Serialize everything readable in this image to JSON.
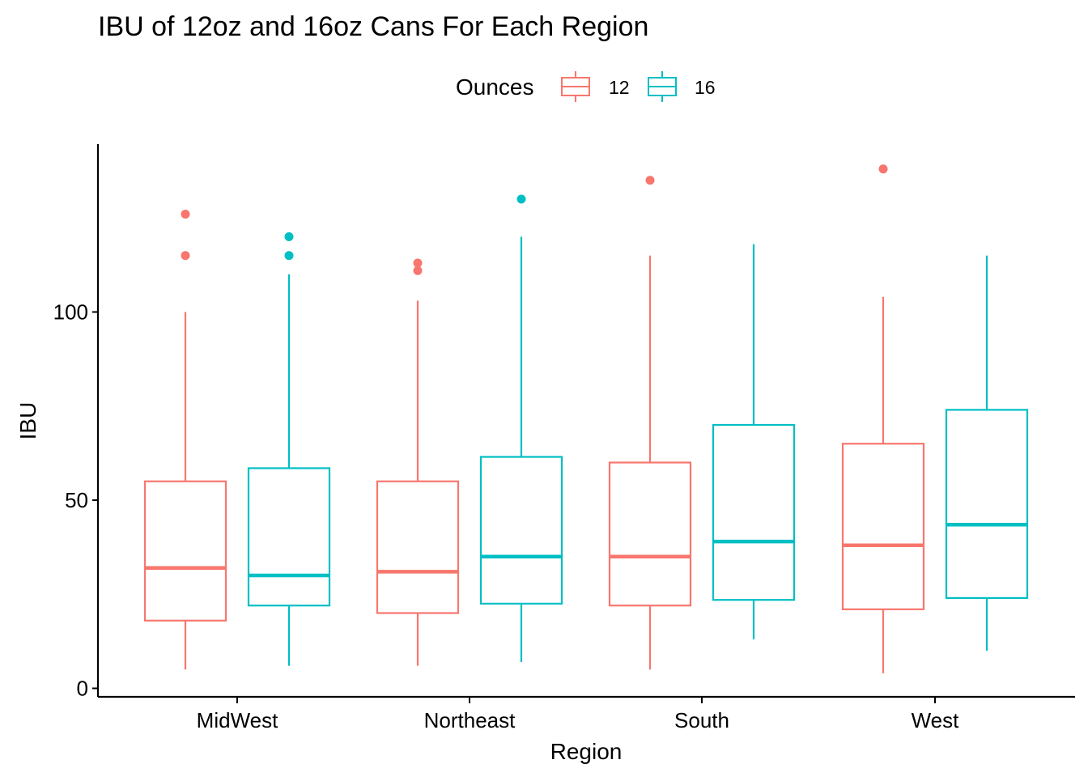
{
  "chart_data": {
    "type": "boxplot",
    "title": "IBU of 12oz and 16oz Cans For Each Region",
    "xlabel": "Region",
    "ylabel": "IBU",
    "categories": [
      "MidWest",
      "Northeast",
      "South",
      "West"
    ],
    "y_ticks": [
      0,
      50,
      100
    ],
    "ylim": [
      -2,
      144
    ],
    "grid": false,
    "legend": {
      "title": "Ounces",
      "position": "top",
      "entries": [
        "12",
        "16"
      ]
    },
    "series": [
      {
        "name": "12",
        "color": "#F8766D",
        "boxes": [
          {
            "category": "MidWest",
            "min": 5,
            "q1": 18,
            "median": 32,
            "q3": 55,
            "max": 100,
            "outliers": [
              115,
              126
            ]
          },
          {
            "category": "Northeast",
            "min": 6,
            "q1": 20,
            "median": 31,
            "q3": 55,
            "max": 103,
            "outliers": [
              111,
              113
            ]
          },
          {
            "category": "South",
            "min": 5,
            "q1": 22,
            "median": 35,
            "q3": 60,
            "max": 115,
            "outliers": [
              135
            ]
          },
          {
            "category": "West",
            "min": 4,
            "q1": 21,
            "median": 38,
            "q3": 65,
            "max": 104,
            "outliers": [
              138
            ]
          }
        ]
      },
      {
        "name": "16",
        "color": "#00BFC4",
        "boxes": [
          {
            "category": "MidWest",
            "min": 6,
            "q1": 22,
            "median": 30,
            "q3": 58.5,
            "max": 110,
            "outliers": [
              115,
              120
            ]
          },
          {
            "category": "Northeast",
            "min": 7,
            "q1": 22.5,
            "median": 35,
            "q3": 61.5,
            "max": 120,
            "outliers": [
              130
            ]
          },
          {
            "category": "South",
            "min": 13,
            "q1": 23.5,
            "median": 39,
            "q3": 70,
            "max": 118,
            "outliers": []
          },
          {
            "category": "West",
            "min": 10,
            "q1": 24,
            "median": 43.5,
            "q3": 74,
            "max": 115,
            "outliers": []
          }
        ]
      }
    ]
  }
}
